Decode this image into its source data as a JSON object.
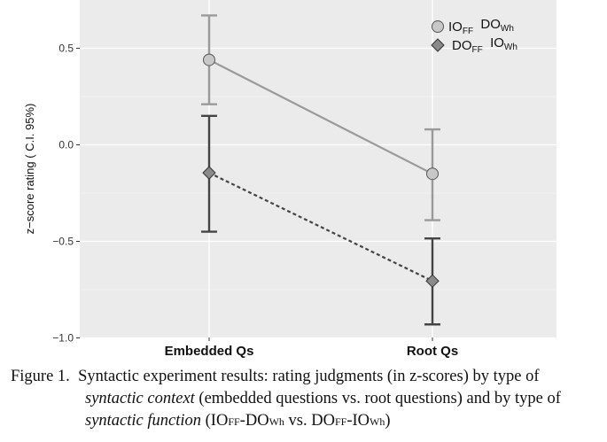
{
  "chart_data": {
    "type": "line",
    "categories": [
      "Embedded Qs",
      "Root Qs"
    ],
    "ylabel": "z−score rating ( C.I. 95%)",
    "ylim": [
      -1.0,
      0.7
    ],
    "yticks": [
      -1.0,
      -0.5,
      0.0,
      0.5
    ],
    "ytick_labels": [
      "−1.0",
      "−0.5",
      "0.0",
      "0.5"
    ],
    "grid": true,
    "legend_position": "top-right",
    "series": [
      {
        "legend_main1": "IO",
        "legend_sub1": "FF",
        "legend_main2": "DO",
        "legend_sub2": "Wh",
        "values": [
          0.44,
          -0.15
        ],
        "ci_low": [
          0.21,
          -0.39
        ],
        "ci_high": [
          0.67,
          0.08
        ],
        "color": "#9a9a9a",
        "marker": "circle",
        "line_style": "solid"
      },
      {
        "legend_main1": "DO",
        "legend_sub1": "FF",
        "legend_main2": "IO",
        "legend_sub2": "Wh",
        "values": [
          -0.145,
          -0.705
        ],
        "ci_low": [
          -0.45,
          -0.93
        ],
        "ci_high": [
          0.15,
          -0.485
        ],
        "color": "#444444",
        "marker": "diamond",
        "line_style": "dashed"
      }
    ]
  },
  "caption": {
    "label": "Figure 1.",
    "line1_text": "Syntactic experiment results: rating judgments (in z-scores) by type of",
    "line2_italic": "syntactic context",
    "line2_text": "(embedded questions vs. root questions) and by type of",
    "line3_italic": "syntactic function",
    "line3_p1": "(IO",
    "line3_s1": "FF",
    "line3_p2": "-DO",
    "line3_s2": "Wh",
    "line3_p3": " vs. DO",
    "line3_s3": "FF",
    "line3_p4": "-IO",
    "line3_s4": "Wh",
    "line3_p5": ")"
  }
}
